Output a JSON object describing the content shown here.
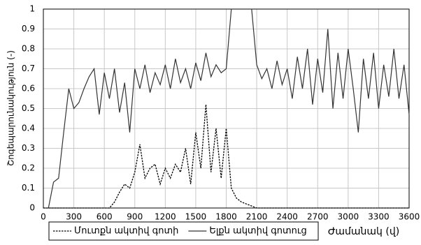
{
  "chart_data": {
    "type": "line",
    "y_label": "Շոգեպարունակություն (-)",
    "x_label": "Ժամանակ (վ)",
    "x": [
      0,
      50,
      100,
      150,
      200,
      250,
      300,
      350,
      400,
      450,
      500,
      550,
      600,
      650,
      700,
      750,
      800,
      850,
      900,
      950,
      1000,
      1050,
      1100,
      1150,
      1200,
      1250,
      1300,
      1350,
      1400,
      1450,
      1500,
      1550,
      1600,
      1650,
      1700,
      1750,
      1800,
      1850,
      1900,
      1950,
      2000,
      2050,
      2100,
      2150,
      2200,
      2250,
      2300,
      2350,
      2400,
      2450,
      2500,
      2550,
      2600,
      2650,
      2700,
      2750,
      2800,
      2850,
      2900,
      2950,
      3000,
      3050,
      3100,
      3150,
      3200,
      3250,
      3300,
      3350,
      3400,
      3450,
      3500,
      3550,
      3600
    ],
    "series": [
      {
        "name": "Մուտքն ակտիվ գոտի",
        "color": "#000000",
        "dash": true,
        "values": [
          0,
          0,
          0,
          0,
          0,
          0,
          0,
          0,
          0,
          0,
          0,
          0,
          0,
          0,
          0.03,
          0.08,
          0.12,
          0.1,
          0.18,
          0.32,
          0.15,
          0.2,
          0.22,
          0.12,
          0.2,
          0.15,
          0.22,
          0.18,
          0.3,
          0.12,
          0.38,
          0.2,
          0.52,
          0.18,
          0.4,
          0.15,
          0.4,
          0.1,
          0.05,
          0.03,
          0.02,
          0.01,
          0,
          0,
          0,
          0,
          0,
          0,
          0,
          0,
          0,
          0,
          0,
          0,
          0,
          0,
          0,
          0,
          0,
          0,
          0,
          0,
          0,
          0,
          0,
          0,
          0,
          0,
          0,
          0,
          0,
          0,
          0
        ]
      },
      {
        "name": "Ելքն ակտիվ գոտուց",
        "color": "#333333",
        "dash": false,
        "values": [
          null,
          0,
          0.13,
          0.15,
          0.38,
          0.6,
          0.5,
          0.53,
          0.6,
          0.66,
          0.7,
          0.47,
          0.68,
          0.55,
          0.7,
          0.48,
          0.63,
          0.38,
          0.7,
          0.6,
          0.72,
          0.58,
          0.68,
          0.62,
          0.72,
          0.6,
          0.75,
          0.63,
          0.7,
          0.6,
          0.73,
          0.64,
          0.78,
          0.66,
          0.72,
          0.68,
          0.7,
          1,
          1,
          1,
          1,
          1,
          0.72,
          0.65,
          0.7,
          0.6,
          0.74,
          0.62,
          0.7,
          0.55,
          0.76,
          0.6,
          0.8,
          0.52,
          0.75,
          0.58,
          0.9,
          0.5,
          0.78,
          0.55,
          0.8,
          0.6,
          0.38,
          0.75,
          0.55,
          0.78,
          0.5,
          0.72,
          0.56,
          0.8,
          0.55,
          0.72,
          0.47
        ]
      }
    ],
    "xlim": [
      0,
      3600
    ],
    "xticks": [
      0,
      300,
      600,
      900,
      1200,
      1500,
      1800,
      2100,
      2400,
      2700,
      3000,
      3300,
      3600
    ],
    "ylim": [
      0,
      1
    ],
    "yticks": [
      0,
      0.1,
      0.2,
      0.3,
      0.4,
      0.5,
      0.6,
      0.7,
      0.8,
      0.9,
      1
    ],
    "grid": true,
    "legend": "bottom-left"
  }
}
